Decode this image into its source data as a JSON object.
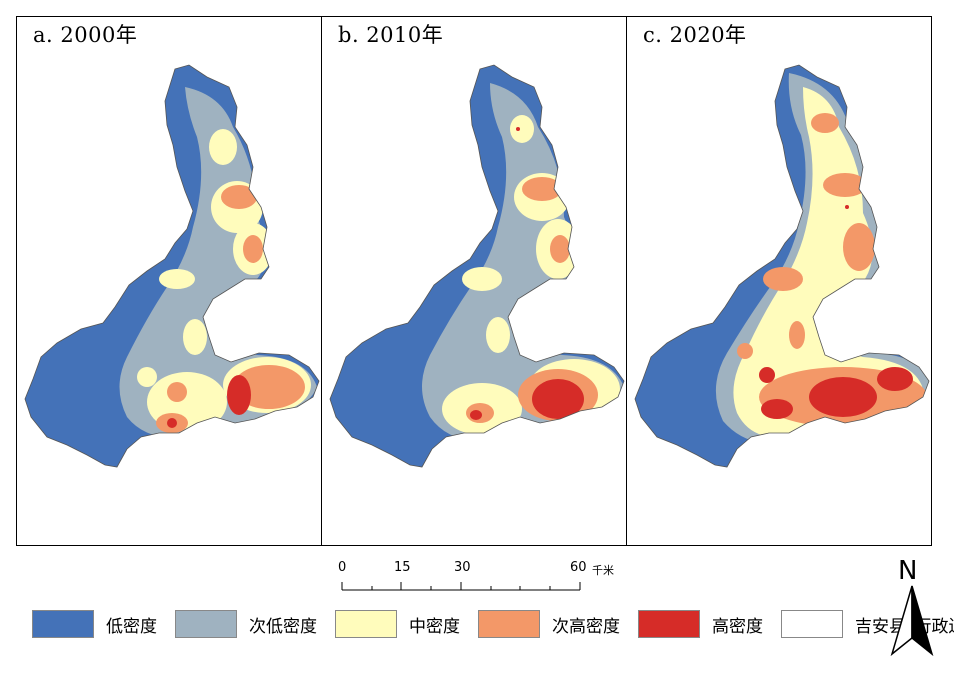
{
  "panels": [
    {
      "title": "a. 2000年",
      "year": 2000
    },
    {
      "title": "b. 2010年",
      "year": 2010
    },
    {
      "title": "c. 2020年",
      "year": 2020
    }
  ],
  "scale_bar": {
    "ticks": [
      "0",
      "15",
      "30",
      "60"
    ],
    "unit": "千米"
  },
  "north_arrow": {
    "letter": "N"
  },
  "legend": [
    {
      "label": "低密度",
      "color": "#4472b8"
    },
    {
      "label": "次低密度",
      "color": "#9fb2c0"
    },
    {
      "label": "中密度",
      "color": "#fffcbc"
    },
    {
      "label": "次高密度",
      "color": "#f39868"
    },
    {
      "label": "高密度",
      "color": "#d62c28"
    },
    {
      "label": "吉安县_行政边界",
      "color": "#ffffff"
    }
  ]
}
